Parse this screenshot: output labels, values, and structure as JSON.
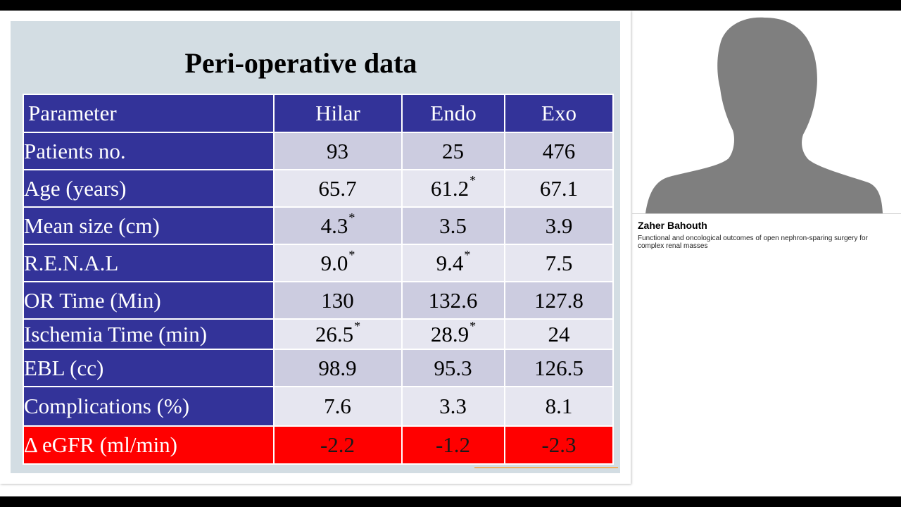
{
  "slide": {
    "title": "Peri-operative data",
    "table": {
      "headers": [
        "Parameter",
        "Hilar",
        "Endo",
        "Exo"
      ],
      "rows": [
        {
          "label": "Patients no.",
          "hilar": "93",
          "hilar_sup": "",
          "endo": "25",
          "endo_sup": "",
          "exo": "476"
        },
        {
          "label": "Age (years)",
          "hilar": "65.7",
          "hilar_sup": "",
          "endo": "61.2",
          "endo_sup": "*",
          "exo": "67.1"
        },
        {
          "label": "Mean size (cm)",
          "hilar": "4.3",
          "hilar_sup": "*",
          "endo": "3.5",
          "endo_sup": "",
          "exo": "3.9"
        },
        {
          "label": "R.E.N.A.L",
          "hilar": "9.0",
          "hilar_sup": "*",
          "endo": "9.4",
          "endo_sup": "*",
          "exo": "7.5"
        },
        {
          "label": "OR Time (Min)",
          "hilar": "130",
          "hilar_sup": "",
          "endo": "132.6",
          "endo_sup": "",
          "exo": "127.8"
        },
        {
          "label": "Ischemia Time (min)",
          "hilar": "26.5",
          "hilar_sup": "*",
          "endo": "28.9",
          "endo_sup": "*",
          "exo": "24"
        },
        {
          "label": "EBL (cc)",
          "hilar": "98.9",
          "hilar_sup": "",
          "endo": "95.3",
          "endo_sup": "",
          "exo": "126.5"
        },
        {
          "label": "Complications (%)",
          "hilar": "7.6",
          "hilar_sup": "",
          "endo": "3.3",
          "endo_sup": "",
          "exo": "8.1"
        },
        {
          "label": "Δ eGFR (ml/min)",
          "hilar": "-2.2",
          "hilar_sup": "",
          "endo": "-1.2",
          "endo_sup": "",
          "exo": "-2.3"
        }
      ]
    },
    "colors": {
      "header_blue": "#333399",
      "highlight_red": "#ff0000",
      "slide_bg": "#d3dde3"
    }
  },
  "speaker": {
    "icon": "person-silhouette-icon",
    "name": "Zaher Bahouth",
    "talk_title": "Functional and oncological outcomes of open nephron-sparing surgery for complex renal masses"
  }
}
